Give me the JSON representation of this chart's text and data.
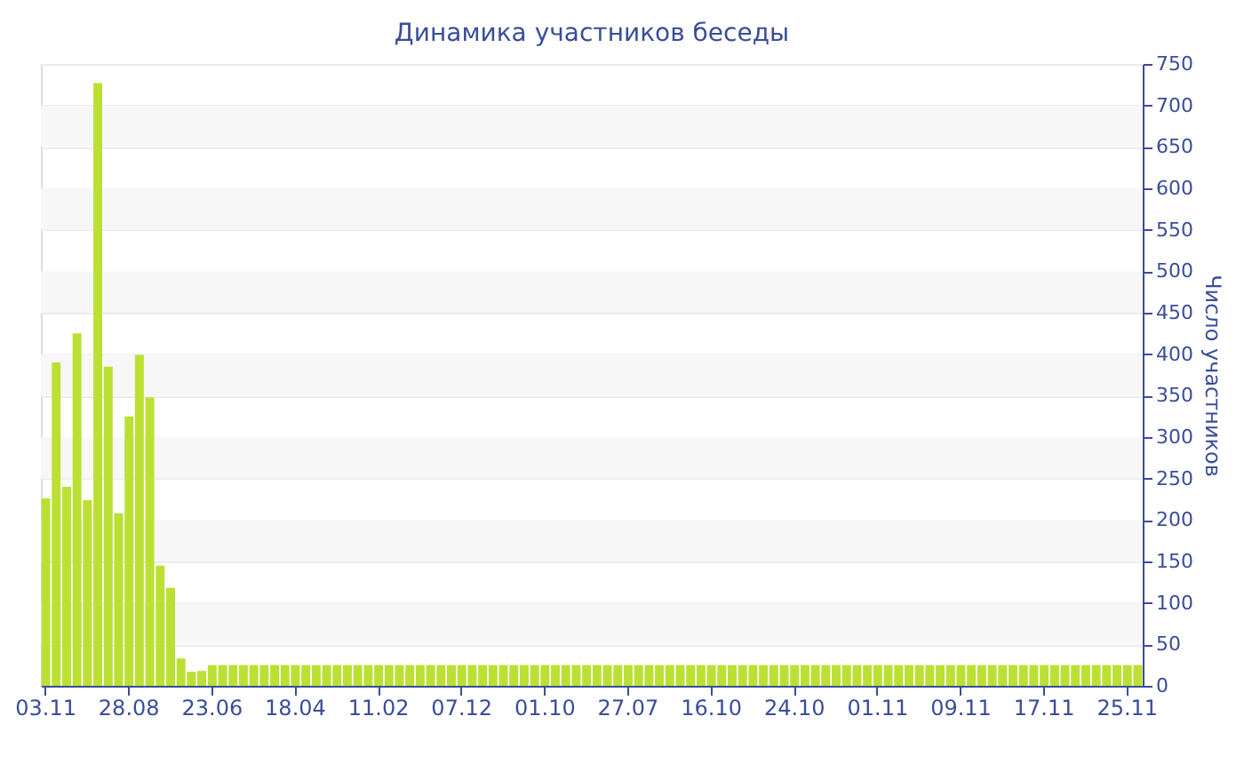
{
  "chart_data": {
    "type": "bar",
    "title": "Динамика участников беседы",
    "ylabel": "Число участников",
    "categories": [
      "03.11",
      null,
      null,
      null,
      null,
      null,
      null,
      null,
      "28.08",
      null,
      null,
      null,
      null,
      null,
      null,
      null,
      "23.06",
      null,
      null,
      null,
      null,
      null,
      null,
      null,
      "18.04",
      null,
      null,
      null,
      null,
      null,
      null,
      null,
      "11.02",
      null,
      null,
      null,
      null,
      null,
      null,
      null,
      "07.12",
      null,
      null,
      null,
      null,
      null,
      null,
      null,
      "01.10",
      null,
      null,
      null,
      null,
      null,
      null,
      null,
      "27.07",
      null,
      null,
      null,
      null,
      null,
      null,
      null,
      "16.10",
      null,
      null,
      null,
      null,
      null,
      null,
      null,
      "24.10",
      null,
      null,
      null,
      null,
      null,
      null,
      null,
      "01.11",
      null,
      null,
      null,
      null,
      null,
      null,
      null,
      "09.11",
      null,
      null,
      null,
      null,
      null,
      null,
      null,
      "17.11",
      null,
      null,
      null,
      null,
      null,
      null,
      null,
      "25.11",
      null
    ],
    "values": [
      226,
      390,
      240,
      425,
      224,
      727,
      385,
      208,
      325,
      399,
      348,
      145,
      118,
      33,
      17,
      18,
      25,
      25,
      25,
      25,
      25,
      25,
      25,
      25,
      25,
      25,
      25,
      25,
      25,
      25,
      25,
      25,
      25,
      25,
      25,
      25,
      25,
      25,
      25,
      25,
      25,
      25,
      25,
      25,
      25,
      25,
      25,
      25,
      25,
      25,
      25,
      25,
      25,
      25,
      25,
      25,
      25,
      25,
      25,
      25,
      25,
      25,
      25,
      25,
      25,
      25,
      25,
      25,
      25,
      25,
      25,
      25,
      25,
      25,
      25,
      25,
      25,
      25,
      25,
      25,
      25,
      25,
      25,
      25,
      25,
      25,
      25,
      25,
      25,
      25,
      25,
      25,
      25,
      25,
      25,
      25,
      25,
      25,
      25,
      25,
      25,
      25,
      25,
      25,
      25,
      25
    ],
    "color": "#bbe033",
    "ylim": [
      0,
      750
    ],
    "yticks": [
      0,
      50,
      100,
      150,
      200,
      250,
      300,
      350,
      400,
      450,
      500,
      550,
      600,
      650,
      700,
      750
    ],
    "grid": "y"
  }
}
